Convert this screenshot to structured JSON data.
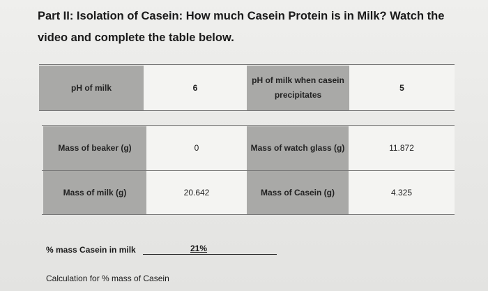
{
  "title": "Part II: Isolation of Casein: How much Casein Protein is in Milk? Watch the video and complete the table below.",
  "table1": {
    "cells": [
      "pH of milk",
      "6",
      "pH of milk when casein precipitates",
      "5"
    ]
  },
  "table2": {
    "rows": [
      {
        "cells": [
          "Mass of beaker (g)",
          "0",
          "Mass of watch glass (g)",
          "11.872"
        ]
      },
      {
        "cells": [
          "Mass of milk (g)",
          "20.642",
          "Mass of Casein (g)",
          "4.325"
        ]
      }
    ]
  },
  "result": {
    "label": "% mass Casein in milk",
    "value": "21%"
  },
  "calculation_label": "Calculation for % mass of Casein"
}
